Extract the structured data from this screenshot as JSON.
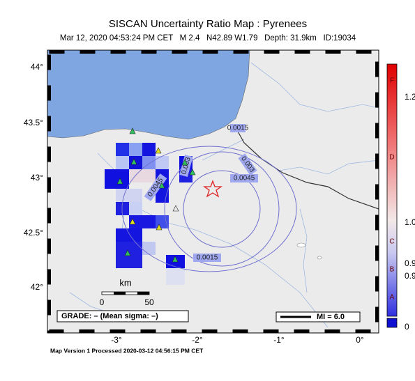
{
  "header": {
    "title": "SISCAN Uncertainty Ratio Map : Pyrenees",
    "subtitle": "Mar 12, 2020 04:53:24 PM CET   M 2.4   N42.89 W1.79   Depth: 31.9km   ID:19034"
  },
  "axes": {
    "lat": [
      "44°",
      "43.5°",
      "43°",
      "42.5°",
      "42°"
    ],
    "lon": [
      "-3°",
      "-2°",
      "-1°",
      "0°"
    ]
  },
  "colorbar": {
    "grades": [
      "F",
      "D",
      "C",
      "B",
      "A"
    ],
    "values": [
      "1.2",
      "1.0",
      "0.9",
      "0.9",
      "0"
    ]
  },
  "contours": [
    "0.0015",
    "0.003",
    "0.0045",
    "0.003",
    "0.0045",
    "0.0015"
  ],
  "scale": {
    "unit": "km",
    "labels": [
      "0",
      "50"
    ]
  },
  "grade": "GRADE: – (Mean sigma: –)",
  "mmi": "MI = 6.0",
  "footer": "Map Version 1 Processed 2020-03-12 04:56:15 PM CET"
}
